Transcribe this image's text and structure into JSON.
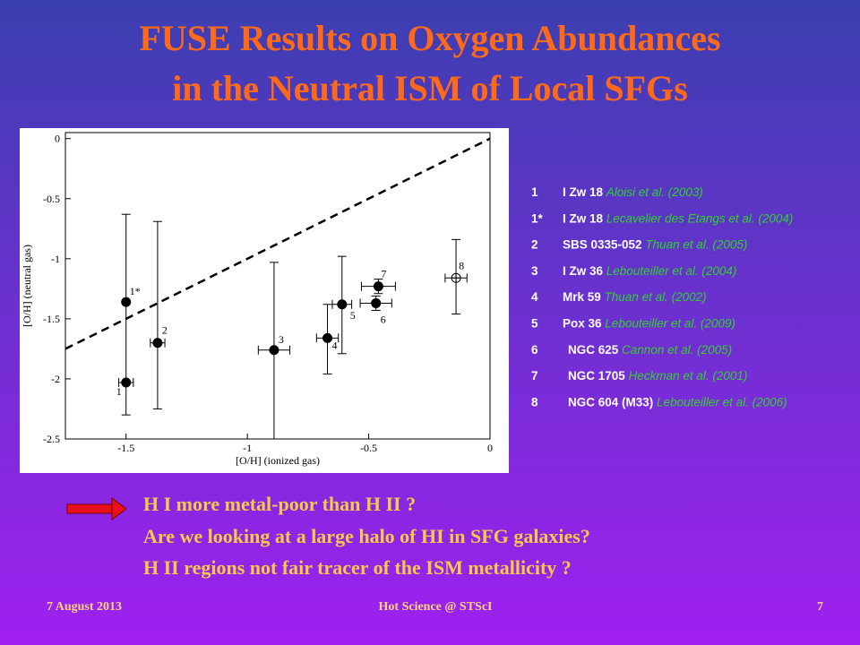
{
  "header": {
    "title_lines": [
      "FUSE Results on Oxygen Abundances",
      "in the Neutral ISM of Local SFGs"
    ]
  },
  "chart_data": {
    "type": "scatter",
    "x_label": "[O/H] (ionized gas)",
    "y_label": "[O/H] (neutral gas)",
    "xlim": [
      -1.75,
      0
    ],
    "ylim": [
      -2.5,
      0.05
    ],
    "xticks": [
      -1.5,
      -1,
      -0.5,
      0
    ],
    "yticks": [
      0,
      -0.5,
      -1,
      -1.5,
      -2,
      -2.5
    ],
    "reference_line": {
      "x": [
        -1.75,
        0
      ],
      "y": [
        -1.75,
        0
      ],
      "color": "#000000"
    },
    "point_labels": [
      "1",
      "1*",
      "2",
      "3",
      "4",
      "5",
      "6",
      "7",
      "8"
    ],
    "x": [
      -1.5,
      -1.5,
      -1.37,
      -0.89,
      -0.67,
      -0.61,
      -0.47,
      -0.46,
      -0.14
    ],
    "values": [
      -2.03,
      -1.36,
      -1.7,
      -1.76,
      -1.66,
      -1.38,
      -1.37,
      -1.23,
      -1.16
    ],
    "y_low": [
      -2.3,
      -2.03,
      -2.25,
      -2.5,
      -1.96,
      -1.79,
      -1.43,
      -1.29,
      -1.46
    ],
    "y_high": [
      -2.03,
      -0.63,
      -0.69,
      -1.03,
      -1.38,
      -0.98,
      -1.31,
      -1.17,
      -0.84
    ],
    "x_err": [
      0.03,
      0.0,
      0.03,
      0.065,
      0.045,
      0.04,
      0.065,
      0.07,
      0.045
    ],
    "open": [
      false,
      false,
      false,
      false,
      false,
      false,
      false,
      false,
      true
    ],
    "color": "#000000"
  },
  "legend": [
    {
      "num": "1",
      "object": "I Zw 18",
      "ref": "Aloisi et al. (2003)"
    },
    {
      "num": "1*",
      "object": "I Zw 18",
      "ref": "Lecavelier des Etangs et al. (2004)"
    },
    {
      "num": "2",
      "object": "SBS 0335-052",
      "ref": "Thuan et al. (2005)"
    },
    {
      "num": "3",
      "object": "I Zw 36",
      "ref": "Lebouteiller et al. (2004)"
    },
    {
      "num": "4",
      "object": "Mrk 59",
      "ref": "Thuan et al. (2002)"
    },
    {
      "num": "5",
      "object": "Pox 36",
      "ref": "Lebouteiller et al. (2009)"
    },
    {
      "num": "6",
      "object": "NGC 625",
      "ref": "Cannon et al. (2005)"
    },
    {
      "num": "7",
      "object": "NGC 1705",
      "ref": "Heckman et al. (2001)"
    },
    {
      "num": "8",
      "object": "NGC 604 (M33)",
      "ref": "Lebouteiller et al. (2006)"
    }
  ],
  "bullets": [
    "H I more metal-poor than H II ?",
    "Are we looking at a large halo of HI in SFG galaxies?",
    "H II regions not fair tracer of the ISM metallicity ?"
  ],
  "footer": {
    "date": "7 August 2013",
    "event": "Hot Science @ STScI",
    "page": "7"
  }
}
